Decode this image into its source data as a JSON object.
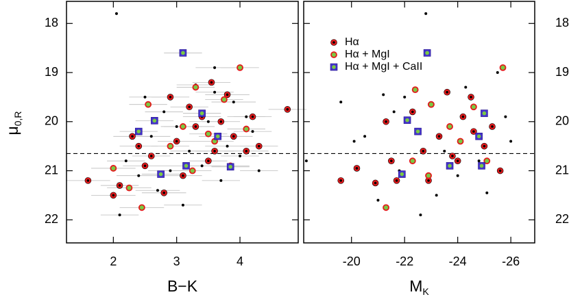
{
  "chart_data": [
    {
      "type": "scatter",
      "xlabel": "B−K",
      "ylabel": "μ",
      "ylabel_sub": "0,R",
      "xlim": [
        1.26,
        4.92
      ],
      "ylim": [
        17.55,
        22.47
      ],
      "y_inverted": true,
      "x_inverted": false,
      "xticks": [
        2,
        3,
        4
      ],
      "yticks": [
        18,
        19,
        20,
        21,
        22
      ],
      "ytick_side": "left",
      "hline": 20.65,
      "series": [
        {
          "marker": "dot",
          "color": "#000000",
          "x": [
            2.05,
            3.6,
            2.5,
            3.3,
            2.8,
            3.9,
            4.1,
            3.0,
            2.6,
            3.5,
            3.8,
            4.2,
            2.2,
            3.2,
            2.9,
            3.7,
            4.3,
            2.7,
            3.1,
            2.1,
            3.4,
            4.0,
            2.4,
            3.6
          ],
          "y": [
            17.8,
            18.9,
            19.5,
            19.25,
            19.8,
            19.6,
            19.9,
            20.1,
            20.3,
            20.0,
            20.5,
            20.2,
            20.8,
            20.6,
            21.0,
            21.2,
            21.0,
            21.4,
            21.7,
            21.9,
            20.9,
            20.7,
            21.1,
            19.4
          ],
          "xerr": [
            0.0,
            0.3,
            0.25,
            0.3,
            0.3,
            0.35,
            0.3,
            0.25,
            0.3,
            0.3,
            0.35,
            0.3,
            0.3,
            0.3,
            0.35,
            0.3,
            0.3,
            0.35,
            0.3,
            0.3,
            0.3,
            0.3,
            0.35,
            0.3
          ]
        },
        {
          "name": "Hα",
          "marker": "ring",
          "color": "#e41a1c",
          "x": [
            4.75,
            3.55,
            2.9,
            3.2,
            3.8,
            4.2,
            2.3,
            2.6,
            3.0,
            3.3,
            3.9,
            4.1,
            1.6,
            2.1,
            2.5,
            2.8,
            3.1,
            3.5,
            3.7,
            4.3,
            2.4,
            3.4,
            2.0,
            3.6
          ],
          "y": [
            19.75,
            19.2,
            19.5,
            19.7,
            19.45,
            19.9,
            20.3,
            20.7,
            20.4,
            20.1,
            20.3,
            20.6,
            21.2,
            21.3,
            20.9,
            21.45,
            21.1,
            20.8,
            20.0,
            20.5,
            20.5,
            19.9,
            21.5,
            20.6
          ],
          "xerr": [
            0.3,
            0.3,
            0.3,
            0.3,
            0.35,
            0.3,
            0.3,
            0.3,
            0.3,
            0.3,
            0.3,
            0.35,
            0.35,
            0.3,
            0.35,
            0.35,
            0.3,
            0.3,
            0.3,
            0.3,
            0.3,
            0.3,
            0.35,
            0.3
          ]
        },
        {
          "name": "Hα + MgI",
          "marker": "circle",
          "color": "#7ac943",
          "edgecolor": "#e41a1c",
          "x": [
            4.0,
            3.3,
            2.55,
            3.75,
            3.1,
            2.9,
            3.5,
            4.1,
            2.0,
            2.25,
            3.25,
            2.45,
            3.85,
            3.6
          ],
          "y": [
            18.9,
            19.3,
            19.65,
            19.55,
            20.1,
            20.5,
            20.25,
            20.15,
            20.95,
            21.35,
            21.0,
            21.75,
            20.9,
            20.4
          ],
          "xerr": [
            0.3,
            0.3,
            0.3,
            0.3,
            0.3,
            0.3,
            0.3,
            0.3,
            0.35,
            0.35,
            0.3,
            0.35,
            0.3,
            0.3
          ]
        },
        {
          "name": "Hα + MgI + CaII",
          "marker": "square",
          "color": "#4433cc",
          "edgecolor": "#7ac943",
          "x": [
            3.1,
            2.4,
            2.65,
            3.4,
            3.65,
            3.15,
            3.85,
            2.75
          ],
          "y": [
            18.6,
            20.2,
            19.98,
            19.83,
            20.3,
            20.9,
            20.92,
            21.07
          ],
          "xerr": [
            0.3,
            0.3,
            0.3,
            0.3,
            0.3,
            0.3,
            0.3,
            0.3
          ]
        }
      ]
    },
    {
      "type": "scatter",
      "xlabel": "M",
      "xlabel_sub": "K",
      "xlim": [
        -18.2,
        -26.9
      ],
      "ylim": [
        17.55,
        22.47
      ],
      "y_inverted": true,
      "x_inverted": true,
      "xticks": [
        -20,
        -22,
        -24,
        -26
      ],
      "yticks": [
        18,
        19,
        20,
        21,
        22
      ],
      "ytick_side": "right",
      "hline": 20.65,
      "legend": "upper left",
      "series": [
        {
          "marker": "dot",
          "color": "#000000",
          "x": [
            -22.8,
            -25.5,
            -21.2,
            -21.6,
            -19.6,
            -24.3,
            -22.0,
            -25.8,
            -26.0,
            -20.1,
            -20.5,
            -23.5,
            -24.8,
            -21.8,
            -23.2,
            -22.6,
            -25.1,
            -18.3,
            -21.0,
            -24.0
          ],
          "y": [
            17.8,
            19.0,
            19.45,
            19.8,
            19.6,
            19.3,
            19.5,
            19.9,
            20.4,
            20.4,
            20.3,
            20.6,
            20.8,
            21.0,
            21.5,
            21.9,
            21.45,
            20.8,
            21.6,
            21.1
          ]
        },
        {
          "name": "Hα",
          "marker": "ring",
          "color": "#e41a1c",
          "x": [
            -20.2,
            -19.6,
            -20.9,
            -21.5,
            -22.3,
            -23.0,
            -23.6,
            -24.2,
            -24.6,
            -25.0,
            -25.3,
            -22.7,
            -23.3,
            -24.0,
            -25.6,
            -21.7,
            -22.9,
            -24.5,
            -21.3,
            -23.8
          ],
          "y": [
            20.95,
            21.2,
            21.25,
            20.8,
            19.8,
            19.65,
            19.4,
            19.9,
            20.2,
            20.5,
            20.1,
            20.6,
            20.3,
            20.8,
            21.0,
            21.2,
            21.2,
            19.5,
            20.0,
            20.7
          ]
        },
        {
          "name": "Hα + MgI",
          "marker": "circle",
          "color": "#7ac943",
          "edgecolor": "#e41a1c",
          "x": [
            -25.7,
            -22.4,
            -23.0,
            -23.7,
            -24.1,
            -25.1,
            -22.3,
            -21.3,
            -22.9,
            -24.6
          ],
          "y": [
            18.9,
            19.35,
            19.65,
            20.1,
            20.4,
            20.8,
            20.8,
            21.75,
            21.1,
            19.7
          ]
        },
        {
          "name": "Hα + MgI + CaII",
          "marker": "square",
          "color": "#4433cc",
          "edgecolor": "#7ac943",
          "x": [
            -22.85,
            -22.1,
            -22.5,
            -25.0,
            -24.8,
            -23.7,
            -24.9,
            -21.9
          ],
          "y": [
            18.6,
            19.97,
            20.2,
            19.83,
            20.3,
            20.9,
            20.9,
            21.07
          ]
        }
      ]
    }
  ]
}
